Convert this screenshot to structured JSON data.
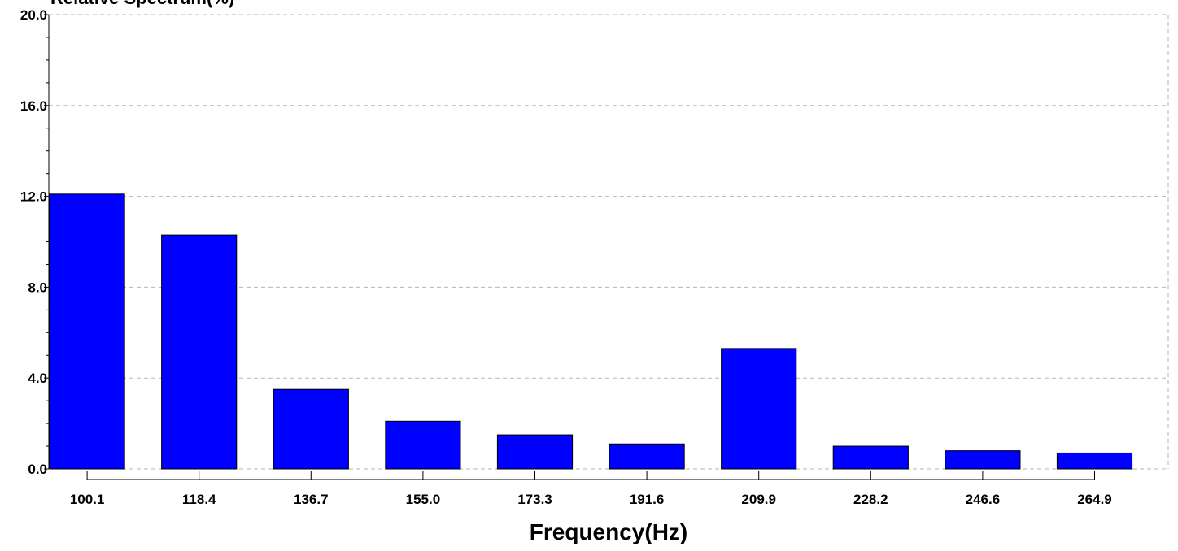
{
  "chart_data": {
    "type": "bar",
    "title": "",
    "ylabel": "Relative Spectrum(%)",
    "xlabel": "Frequency(Hz)",
    "categories": [
      "100.1",
      "118.4",
      "136.7",
      "155.0",
      "173.3",
      "191.6",
      "209.9",
      "228.2",
      "246.6",
      "264.9"
    ],
    "values": [
      12.1,
      10.3,
      3.5,
      2.1,
      1.5,
      1.1,
      5.3,
      1.0,
      0.8,
      0.7
    ],
    "ylim": [
      0,
      20
    ],
    "yticks": [
      "0.0",
      "4.0",
      "8.0",
      "12.0",
      "16.0",
      "20.0"
    ],
    "grid": true,
    "bar_color": "#0000ff",
    "bar_edge_color": "#000000"
  }
}
